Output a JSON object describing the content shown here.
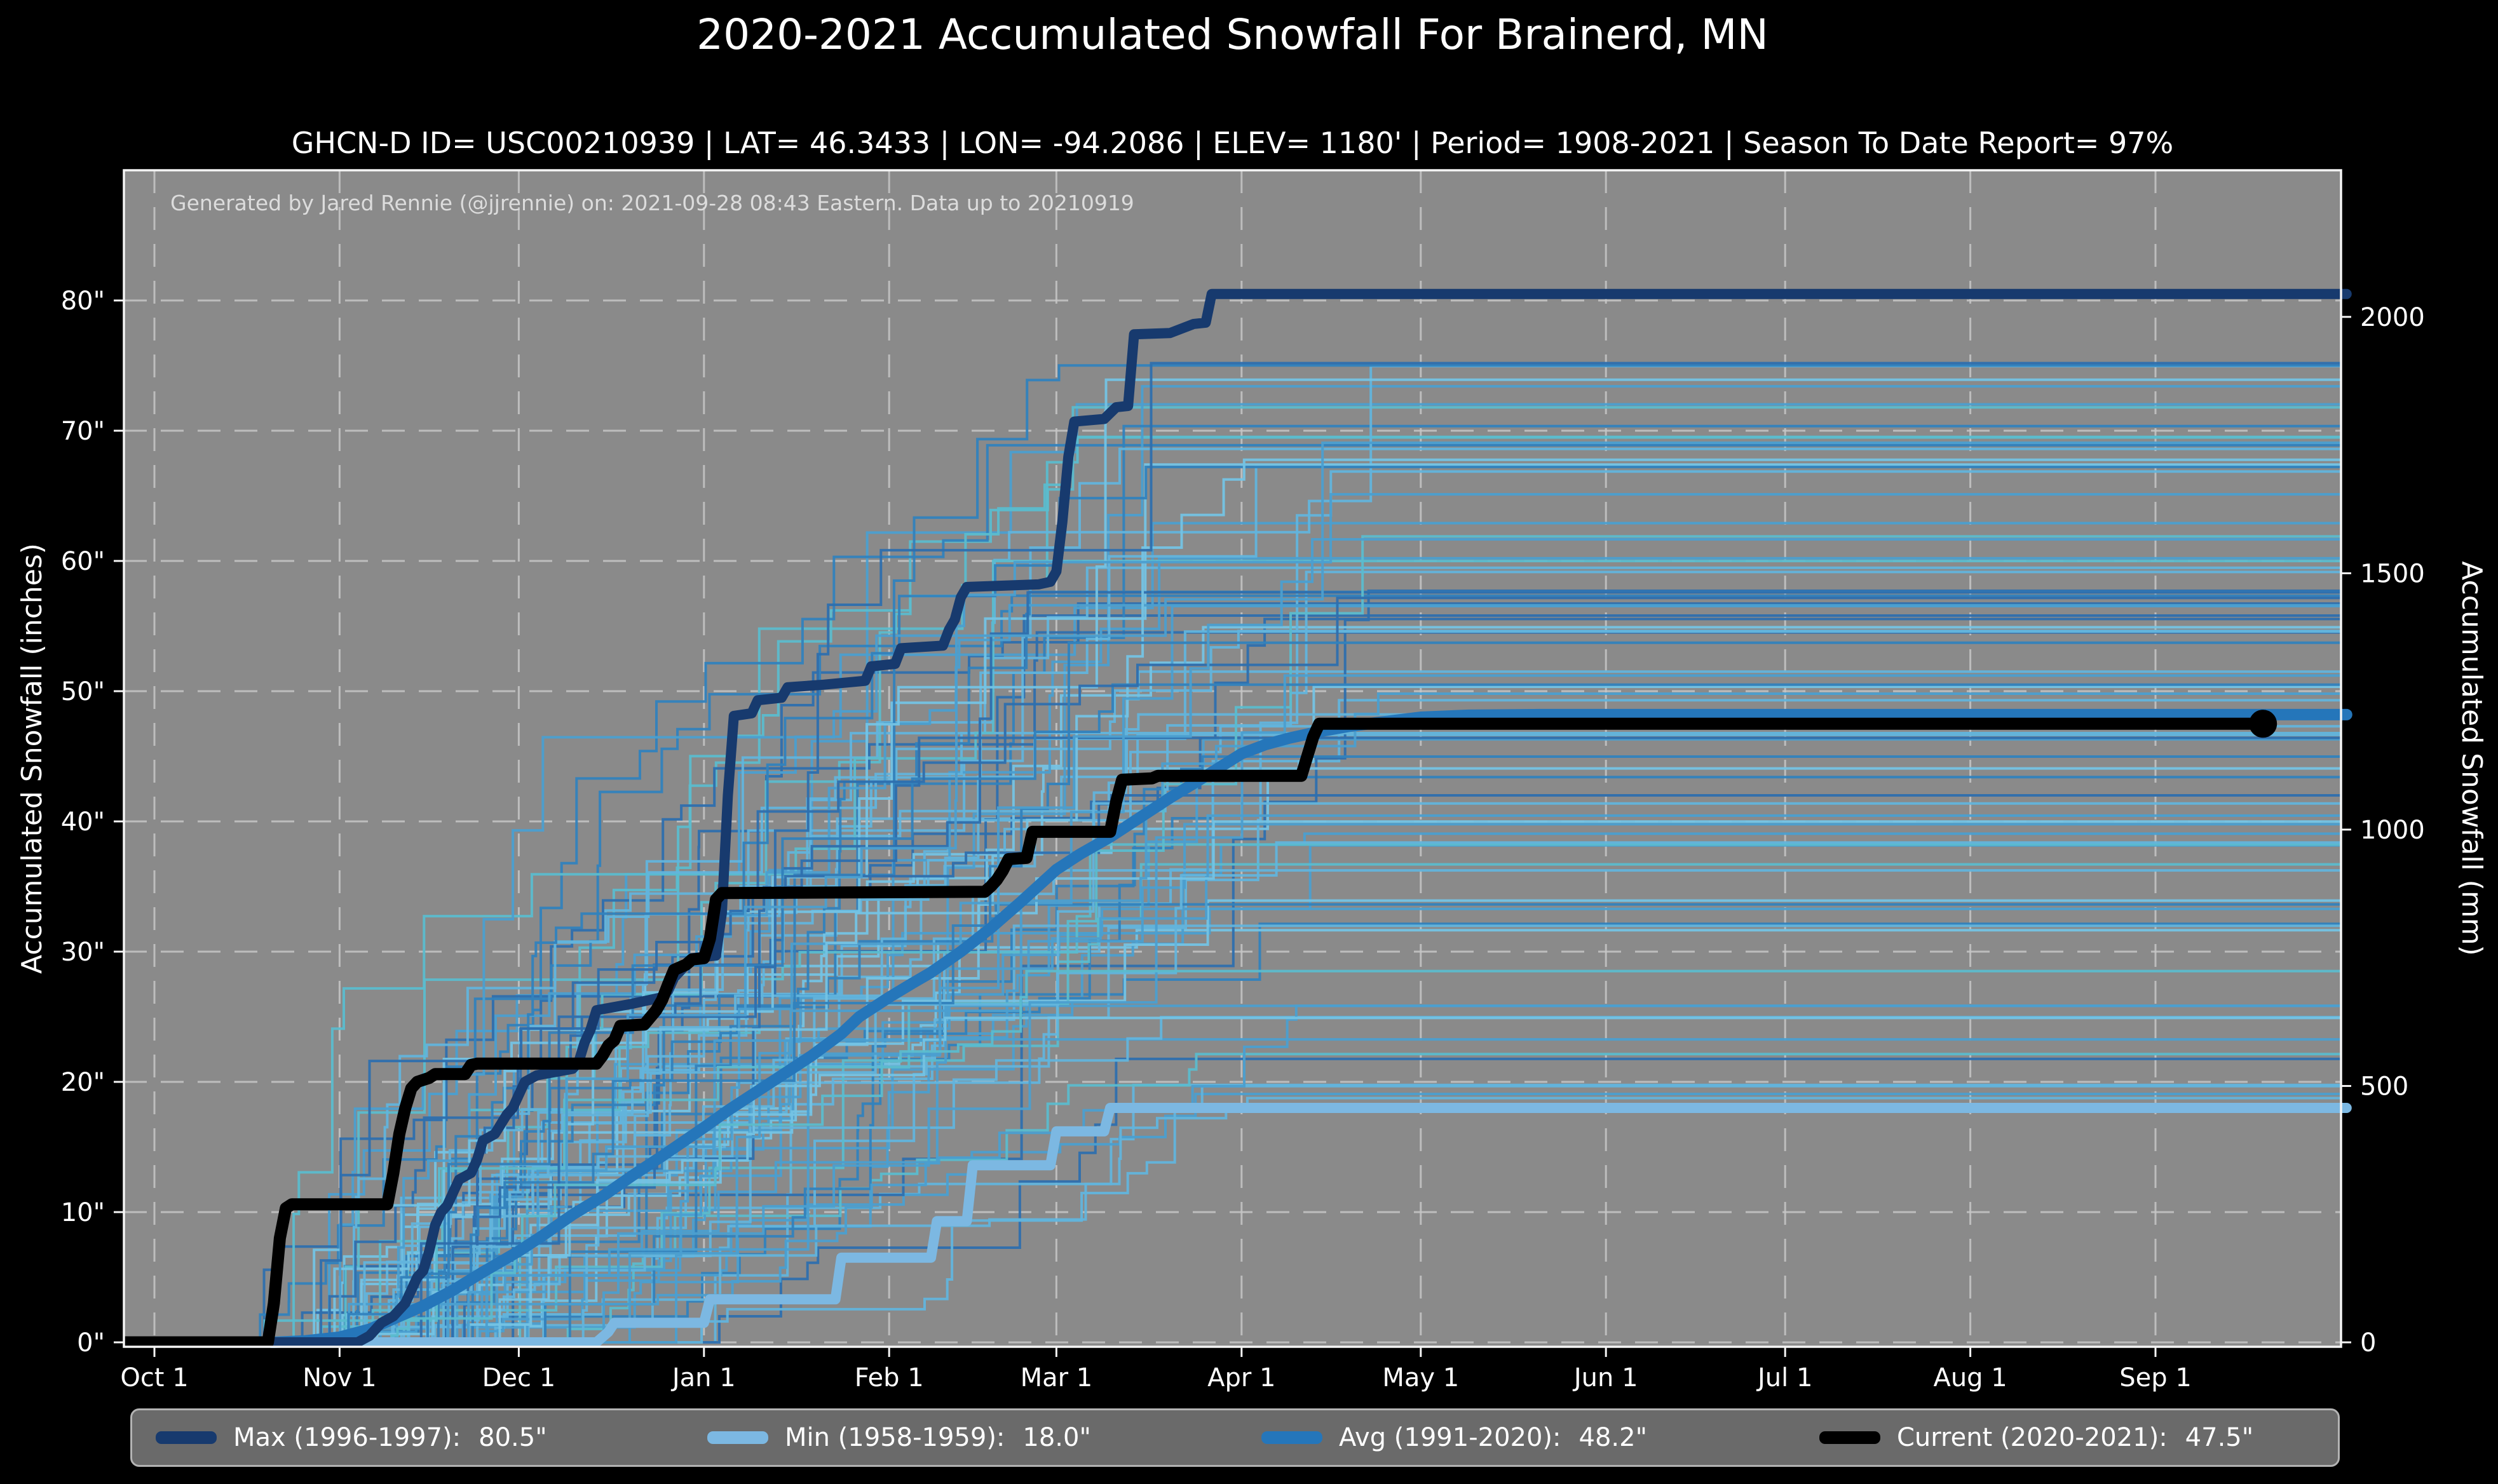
{
  "title": "2020-2021 Accumulated Snowfall For Brainerd, MN",
  "subtitle": "GHCN-D ID= USC00210939 | LAT= 46.3433 | LON= -94.2086 | ELEV= 1180' | Period= 1908-2021 | Season To Date Report= 97%",
  "annotation": "Generated by Jared Rennie (@jjrennie) on: 2021-09-28 08:43 Eastern. Data up to 20210919",
  "axes": {
    "left_label": "Accumulated Snowfall (inches)",
    "right_label": "Accumulated Snowfall (mm)"
  },
  "legend": [
    {
      "label": "Max (1996-1997):",
      "value": "80.5\"",
      "color": "#173a6e"
    },
    {
      "label": "Min (1958-1959):",
      "value": "18.0\"",
      "color": "#7cb8e2"
    },
    {
      "label": "Avg (1991-2020):",
      "value": "48.2\"",
      "color": "#2576ba"
    },
    {
      "label": "Current (2020-2021):",
      "value": "47.5\"",
      "color": "#000000"
    }
  ],
  "colors": {
    "figure_background": "#000000",
    "plot_background": "#8a8a8a",
    "grid": "#c7c7c7",
    "spine": "#f5f5f5",
    "tick_label": "#ffffff",
    "annotation_text": "#dcdcdc",
    "legend_background": "#6a6a6a",
    "legend_border": "#b3b3b3",
    "max_line": "#173a6e",
    "min_line": "#7cb8e2",
    "avg_line": "#2576ba",
    "current_line": "#000000"
  },
  "chart_data": {
    "type": "line",
    "title": "2020-2021 Accumulated Snowfall For Brainerd, MN",
    "x_unit": "days since Oct 1",
    "x_ticks": {
      "days": [
        0,
        31,
        61,
        92,
        123,
        151,
        182,
        212,
        243,
        273,
        304,
        335
      ],
      "labels": [
        "Oct 1",
        "Nov 1",
        "Dec 1",
        "Jan 1",
        "Feb 1",
        "Mar 1",
        "Apr 1",
        "May 1",
        "Jun 1",
        "Jul 1",
        "Aug 1",
        "Sep 1"
      ]
    },
    "y_axis_inches": {
      "label": "Accumulated Snowfall (inches)",
      "ticks": [
        0,
        10,
        20,
        30,
        40,
        50,
        60,
        70,
        80
      ],
      "tick_labels": [
        "0\"",
        "10\"",
        "20\"",
        "30\"",
        "40\"",
        "50\"",
        "60\"",
        "70\"",
        "80\""
      ],
      "range": [
        -0.4,
        90.0
      ]
    },
    "y_axis_mm": {
      "label": "Accumulated Snowfall (mm)",
      "ticks": [
        0,
        500,
        1000,
        1500,
        2000
      ],
      "tick_labels": [
        "0",
        "500",
        "1000",
        "1500",
        "2000"
      ],
      "mm_per_inch": 25.4
    },
    "grid": true,
    "legend_position": "bottom",
    "series": [
      {
        "name": "Max (1996-1997)",
        "total_inches": 80.5,
        "color": "#173a6e",
        "stroke_width": 16,
        "points": [
          [
            -5,
            0
          ],
          [
            34,
            0
          ],
          [
            36,
            0.5
          ],
          [
            38,
            1.5
          ],
          [
            40,
            2
          ],
          [
            42,
            3
          ],
          [
            43,
            4
          ],
          [
            44,
            5
          ],
          [
            45,
            5.5
          ],
          [
            46,
            7
          ],
          [
            47,
            9
          ],
          [
            48,
            10
          ],
          [
            49,
            10.5
          ],
          [
            50,
            11.5
          ],
          [
            51,
            12.5
          ],
          [
            53,
            13
          ],
          [
            54,
            14
          ],
          [
            55,
            15.5
          ],
          [
            57,
            16
          ],
          [
            59,
            17.5
          ],
          [
            60,
            18
          ],
          [
            61,
            19
          ],
          [
            62,
            20
          ],
          [
            64,
            20.5
          ],
          [
            70,
            21
          ],
          [
            71,
            21.5
          ],
          [
            72,
            23
          ],
          [
            73,
            24
          ],
          [
            74,
            25.5
          ],
          [
            80,
            26
          ],
          [
            85,
            26.5
          ],
          [
            86,
            27
          ],
          [
            87,
            28
          ],
          [
            88,
            28.5
          ],
          [
            89,
            29
          ],
          [
            90,
            29.5
          ],
          [
            94,
            29.7
          ],
          [
            95,
            33
          ],
          [
            96,
            42
          ],
          [
            97,
            48.1
          ],
          [
            100,
            48.3
          ],
          [
            101,
            49.3
          ],
          [
            105,
            49.5
          ],
          [
            106,
            50.3
          ],
          [
            112,
            50.5
          ],
          [
            119,
            50.8
          ],
          [
            120,
            51.9
          ],
          [
            124,
            52.1
          ],
          [
            125,
            53.3
          ],
          [
            132,
            53.5
          ],
          [
            133,
            54.7
          ],
          [
            134,
            55.5
          ],
          [
            135,
            57.2
          ],
          [
            136,
            58
          ],
          [
            148,
            58.2
          ],
          [
            150,
            58.4
          ],
          [
            151,
            59.2
          ],
          [
            152,
            63
          ],
          [
            153,
            68
          ],
          [
            154,
            70.7
          ],
          [
            159,
            70.9
          ],
          [
            161,
            71.8
          ],
          [
            163,
            71.9
          ],
          [
            164,
            77.4
          ],
          [
            170,
            77.5
          ],
          [
            174,
            78.2
          ],
          [
            176,
            78.3
          ],
          [
            177,
            80.5
          ],
          [
            367,
            80.5
          ]
        ]
      },
      {
        "name": "Min (1958-1959)",
        "total_inches": 18.0,
        "color": "#7cb8e2",
        "stroke_width": 16,
        "points": [
          [
            -5,
            0
          ],
          [
            74,
            0
          ],
          [
            76,
            0.8
          ],
          [
            77,
            1.5
          ],
          [
            92,
            1.5
          ],
          [
            93,
            3.3
          ],
          [
            114,
            3.3
          ],
          [
            115,
            6.5
          ],
          [
            130,
            6.5
          ],
          [
            131,
            9.3
          ],
          [
            136,
            9.3
          ],
          [
            137,
            13.6
          ],
          [
            150,
            13.6
          ],
          [
            151,
            16.2
          ],
          [
            159,
            16.2
          ],
          [
            160,
            18
          ],
          [
            367,
            18
          ]
        ]
      },
      {
        "name": "Avg (1991-2020)",
        "total_inches": 48.2,
        "color": "#2576ba",
        "stroke_width": 18,
        "points": [
          [
            -5,
            0
          ],
          [
            20,
            0
          ],
          [
            25,
            0.1
          ],
          [
            31,
            0.4
          ],
          [
            36,
            1
          ],
          [
            40,
            1.8
          ],
          [
            45,
            2.8
          ],
          [
            50,
            4
          ],
          [
            55,
            5.4
          ],
          [
            61,
            7
          ],
          [
            65,
            8.2
          ],
          [
            70,
            9.8
          ],
          [
            75,
            11.2
          ],
          [
            80,
            12.8
          ],
          [
            85,
            14.3
          ],
          [
            92,
            16.5
          ],
          [
            96,
            17.8
          ],
          [
            100,
            19
          ],
          [
            105,
            20.5
          ],
          [
            110,
            22
          ],
          [
            115,
            23.7
          ],
          [
            118,
            25
          ],
          [
            123,
            26.5
          ],
          [
            127,
            27.6
          ],
          [
            130,
            28.4
          ],
          [
            135,
            30
          ],
          [
            140,
            31.8
          ],
          [
            145,
            33.8
          ],
          [
            151,
            36.3
          ],
          [
            155,
            37.5
          ],
          [
            160,
            38.8
          ],
          [
            165,
            40.3
          ],
          [
            170,
            41.8
          ],
          [
            175,
            43.2
          ],
          [
            182,
            45.2
          ],
          [
            186,
            45.9
          ],
          [
            190,
            46.4
          ],
          [
            195,
            46.9
          ],
          [
            200,
            47.3
          ],
          [
            205,
            47.6
          ],
          [
            212,
            48
          ],
          [
            220,
            48.15
          ],
          [
            232,
            48.2
          ],
          [
            367,
            48.2
          ]
        ]
      },
      {
        "name": "Current (2020-2021)",
        "total_inches": 47.5,
        "color": "#000000",
        "stroke_width": 19,
        "points": [
          [
            -5,
            0
          ],
          [
            19,
            0
          ],
          [
            20,
            3
          ],
          [
            21,
            8
          ],
          [
            22,
            10.3
          ],
          [
            23,
            10.6
          ],
          [
            39,
            10.6
          ],
          [
            40,
            13
          ],
          [
            41,
            16
          ],
          [
            42,
            18
          ],
          [
            43,
            19.5
          ],
          [
            44,
            20
          ],
          [
            46,
            20.3
          ],
          [
            47,
            20.6
          ],
          [
            52,
            20.6
          ],
          [
            53,
            21.3
          ],
          [
            54,
            21.4
          ],
          [
            74,
            21.4
          ],
          [
            75,
            22
          ],
          [
            76,
            22.8
          ],
          [
            77,
            23.2
          ],
          [
            78,
            24.3
          ],
          [
            82,
            24.4
          ],
          [
            84,
            25.5
          ],
          [
            85,
            26.3
          ],
          [
            86,
            27.5
          ],
          [
            87,
            28.6
          ],
          [
            89,
            29
          ],
          [
            90,
            29.4
          ],
          [
            92,
            29.5
          ],
          [
            93,
            31
          ],
          [
            94,
            34
          ],
          [
            95,
            34.5
          ],
          [
            139,
            34.6
          ],
          [
            140,
            35
          ],
          [
            141,
            35.5
          ],
          [
            142,
            36.2
          ],
          [
            143,
            37.1
          ],
          [
            146,
            37.2
          ],
          [
            147,
            39.2
          ],
          [
            160,
            39.2
          ],
          [
            161,
            41.5
          ],
          [
            162,
            43.2
          ],
          [
            167,
            43.3
          ],
          [
            168,
            43.5
          ],
          [
            192,
            43.5
          ],
          [
            193,
            45
          ],
          [
            194,
            46.5
          ],
          [
            195,
            47.5
          ],
          [
            353,
            47.5
          ]
        ],
        "end_marker": {
          "day": 353,
          "value": 47.5,
          "radius": 22
        }
      }
    ],
    "background_seasons": {
      "description": "thin step traces, one per season 1908-2021",
      "count": 85,
      "seed": 1337,
      "start_day_range": [
        14,
        60
      ],
      "final_range_inches": [
        18,
        76
      ],
      "stroke_width": 4,
      "palette": [
        "#3182bd",
        "#3182bd",
        "#2e6fae",
        "#4b9fd0",
        "#4b9fd0",
        "#62b4dc",
        "#62b4dc",
        "#74c3e4",
        "#5bbccd"
      ]
    }
  }
}
